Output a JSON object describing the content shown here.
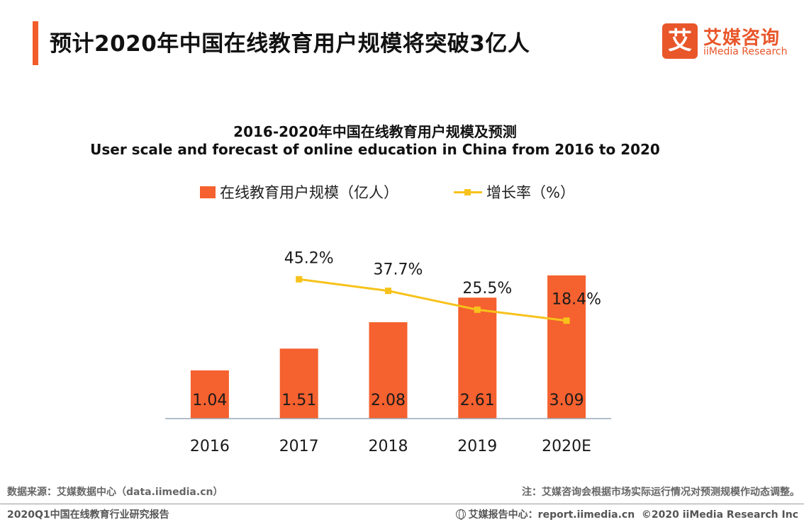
{
  "header": {
    "title": "预计2020年中国在线教育用户规模将突破3亿人"
  },
  "logo": {
    "mark": "艾",
    "name_cn": "艾媒咨询",
    "name_en": "iiMedia Research"
  },
  "chart_data": {
    "type": "bar+line",
    "title": "2016-2020年中国在线教育用户规模及预测",
    "subtitle": "User scale and forecast of online education in China from 2016 to 2020",
    "categories": [
      "2016",
      "2017",
      "2018",
      "2019",
      "2020E"
    ],
    "series": [
      {
        "name": "在线教育用户规模（亿人）",
        "type": "bar",
        "color": "#f5612f",
        "values": [
          1.04,
          1.51,
          2.08,
          2.61,
          3.09
        ],
        "labels": [
          "1.04",
          "1.51",
          "2.08",
          "2.61",
          "3.09"
        ]
      },
      {
        "name": "增长率（%）",
        "type": "line",
        "color": "#f7c21b",
        "values": [
          null,
          45.2,
          37.7,
          25.5,
          18.4
        ],
        "labels": [
          "",
          "45.2%",
          "37.7%",
          "25.5%",
          "18.4%"
        ]
      }
    ],
    "bar_axis_range": [
      0,
      3.5
    ],
    "line_axis_range": [
      -45,
      60
    ],
    "grid": false,
    "legend_position": "top-center"
  },
  "footer": {
    "source": "数据来源：艾媒数据中心（data.iimedia.cn）",
    "note": "注：艾媒咨询会根据市场实际运行情况对预测规模作动态调整。",
    "report": "2020Q1中国在线教育行业研究报告",
    "site": "艾媒报告中心：report.iimedia.cn",
    "copyright": "©2020  iiMedia Research  Inc"
  }
}
